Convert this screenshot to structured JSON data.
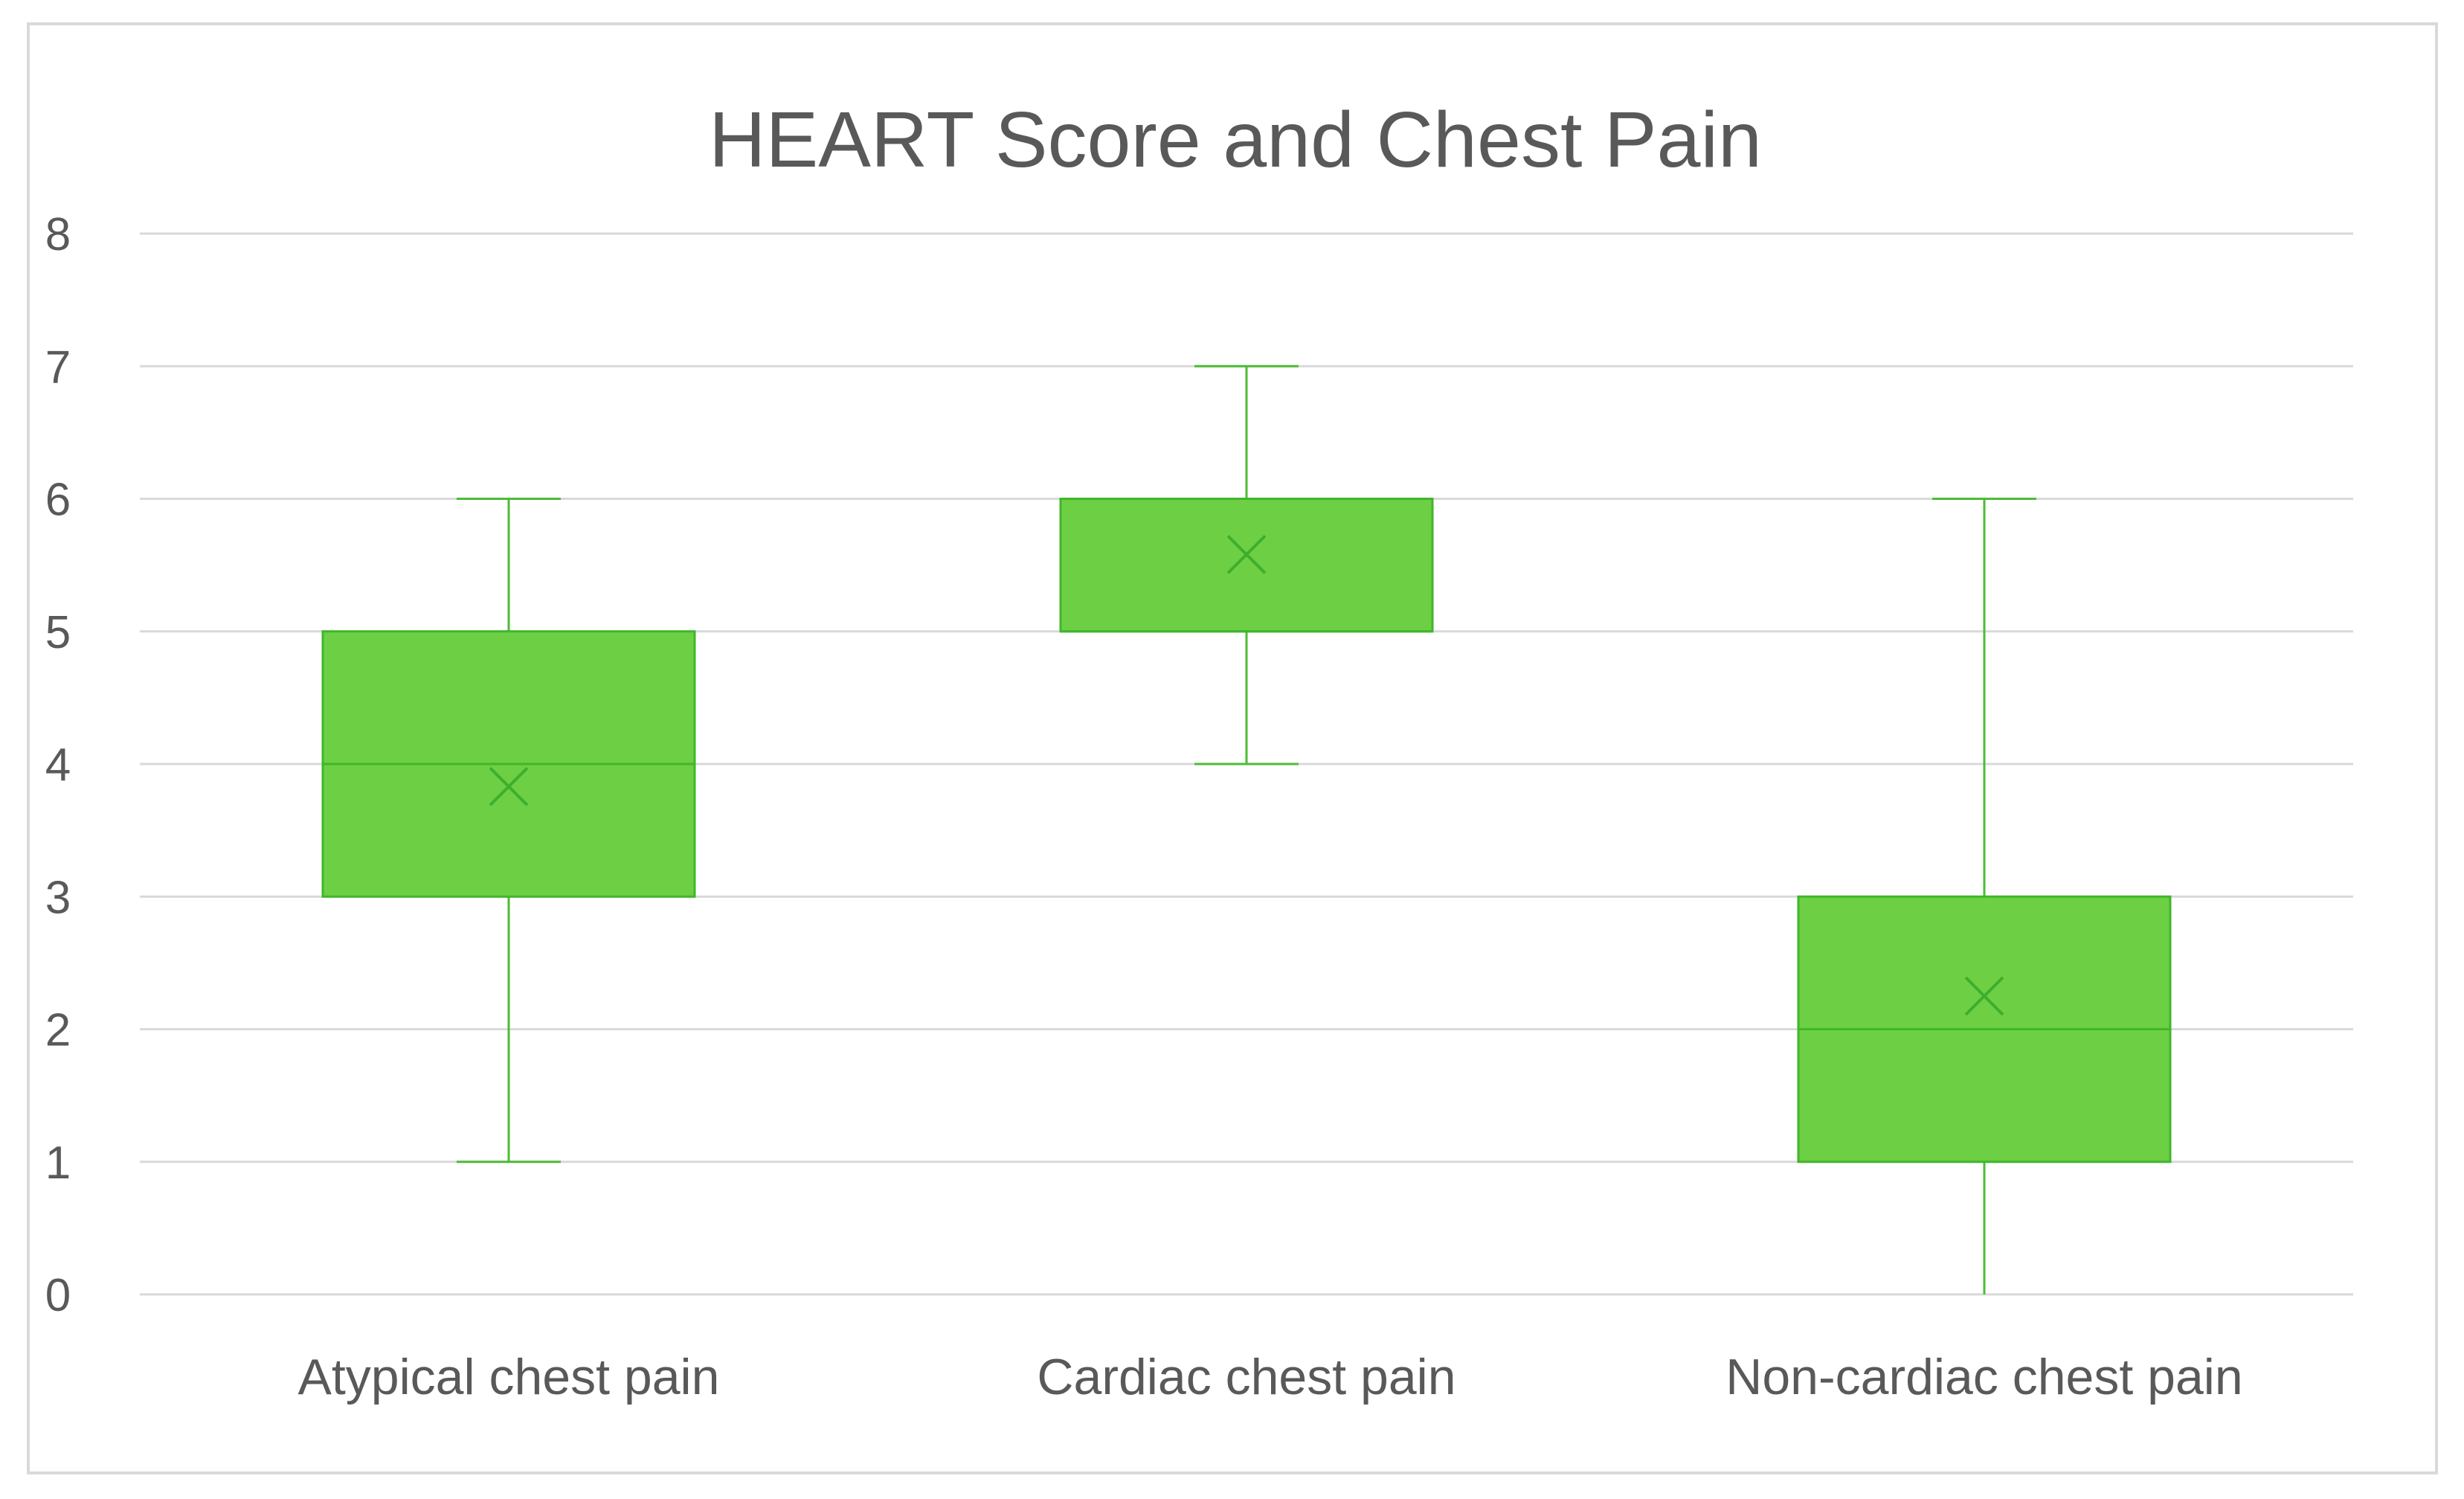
{
  "chart_data": {
    "type": "box",
    "title": "HEART Score and Chest Pain",
    "xlabel": "",
    "ylabel": "",
    "ylim": [
      0,
      8
    ],
    "yticks": [
      0,
      1,
      2,
      3,
      4,
      5,
      6,
      7,
      8
    ],
    "grid": true,
    "legend": "none",
    "categories": [
      "Atypical chest pain",
      "Cardiac chest pain",
      "Non-cardiac chest pain"
    ],
    "boxes": [
      {
        "category": "Atypical chest pain",
        "min": 1,
        "q1": 3,
        "median": 4,
        "q3": 5,
        "max": 6,
        "mean": 3.83
      },
      {
        "category": "Cardiac chest pain",
        "min": 4,
        "q1": 5,
        "median": 5,
        "q3": 6,
        "max": 7,
        "mean": 5.58
      },
      {
        "category": "Non-cardiac chest pain",
        "min": 0,
        "q1": 1,
        "median": 2,
        "q3": 3,
        "max": 6,
        "mean": 2.25
      }
    ],
    "colors": {
      "box_fill": "#6dd044",
      "box_stroke": "#3fb62a",
      "whisker": "#4cbc34",
      "mean_marker": "#3fae2c",
      "grid": "#d9d9d9",
      "text": "#595959"
    }
  }
}
